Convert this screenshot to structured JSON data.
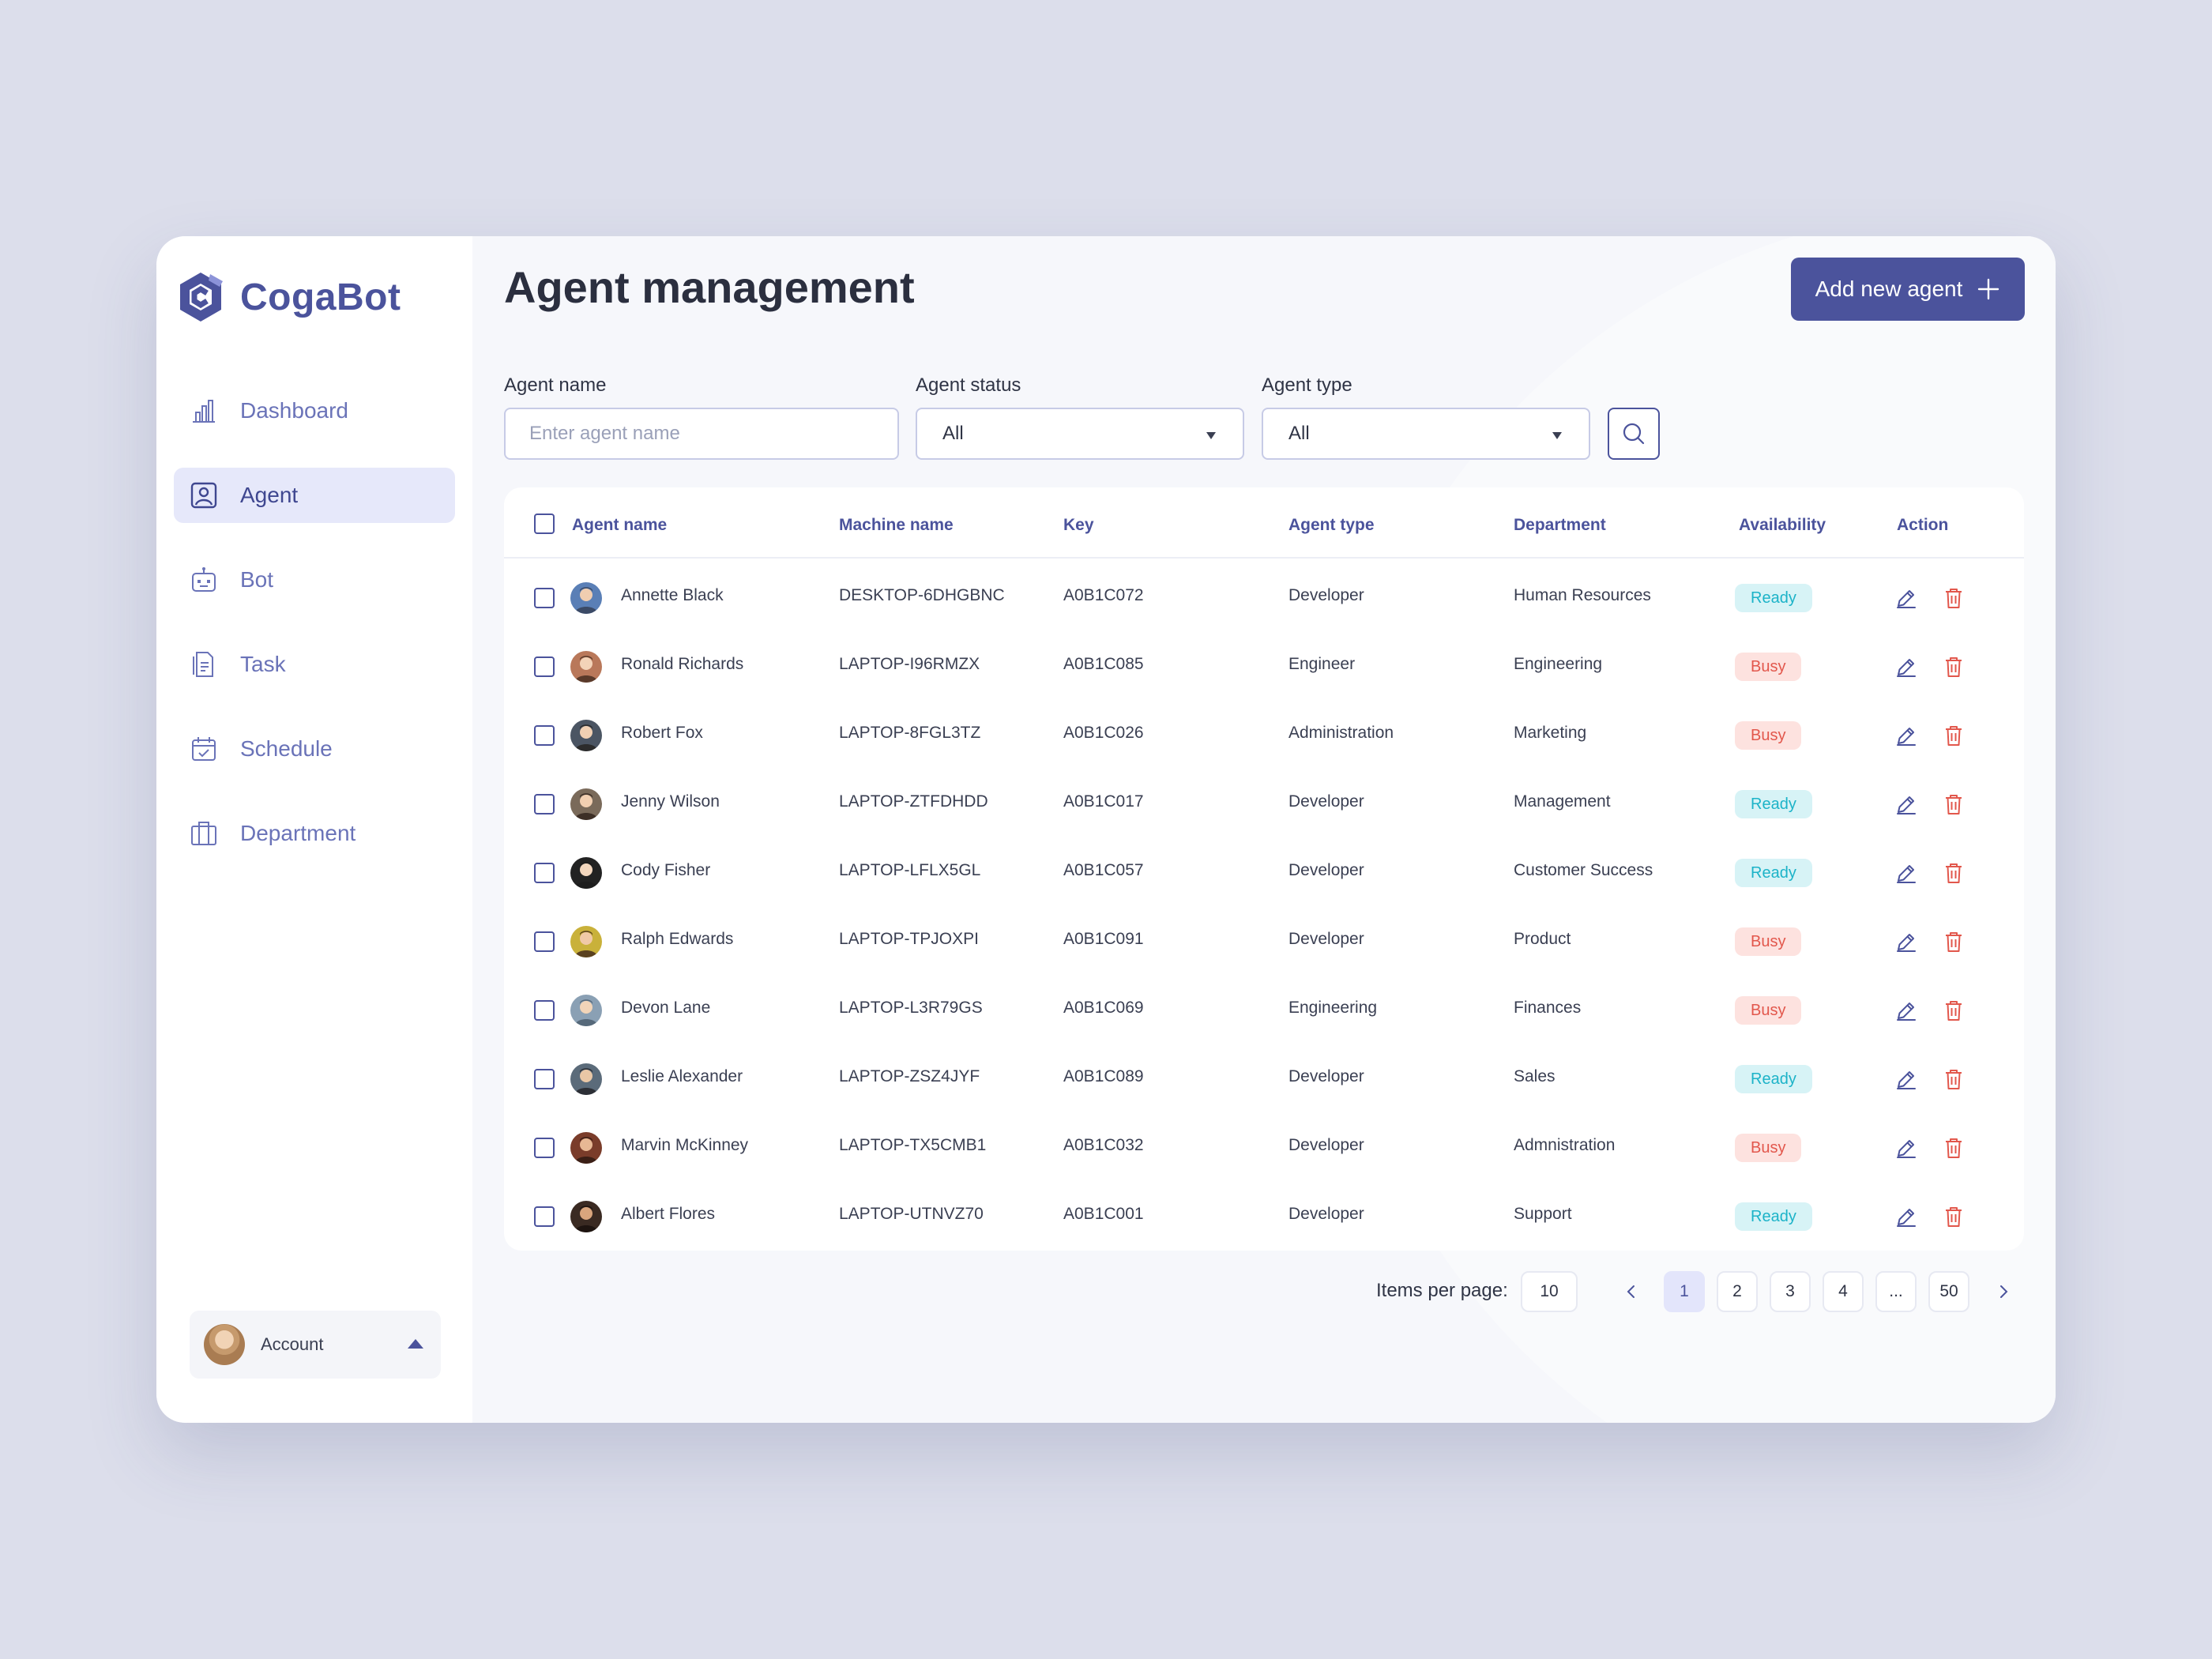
{
  "app": {
    "brand": "CogaBot",
    "accent": "#4b539c",
    "title": "Agent management",
    "add_button_label": "Add new agent"
  },
  "sidebar": {
    "items": [
      {
        "label": "Dashboard",
        "icon": "bar-chart-icon",
        "active": false
      },
      {
        "label": "Agent",
        "icon": "user-square-icon",
        "active": true
      },
      {
        "label": "Bot",
        "icon": "robot-icon",
        "active": false
      },
      {
        "label": "Task",
        "icon": "document-icon",
        "active": false
      },
      {
        "label": "Schedule",
        "icon": "calendar-icon",
        "active": false
      },
      {
        "label": "Department",
        "icon": "building-icon",
        "active": false
      }
    ],
    "account_label": "Account"
  },
  "filters": {
    "agent_name": {
      "label": "Agent name",
      "placeholder": "Enter agent name",
      "value": ""
    },
    "agent_status": {
      "label": "Agent status",
      "value": "All"
    },
    "agent_type": {
      "label": "Agent type",
      "value": "All"
    }
  },
  "table": {
    "columns": [
      "Agent name",
      "Machine name",
      "Key",
      "Agent type",
      "Department",
      "Availability",
      "Action"
    ],
    "rows": [
      {
        "name": "Annette Black",
        "machine": "DESKTOP-6DHGBNC",
        "key": "A0B1C072",
        "type": "Developer",
        "department": "Human Resources",
        "availability": "Ready"
      },
      {
        "name": "Ronald Richards",
        "machine": "LAPTOP-I96RMZX",
        "key": "A0B1C085",
        "type": "Engineer",
        "department": "Engineering",
        "availability": "Busy"
      },
      {
        "name": "Robert Fox",
        "machine": "LAPTOP-8FGL3TZ",
        "key": "A0B1C026",
        "type": "Administration",
        "department": "Marketing",
        "availability": "Busy"
      },
      {
        "name": "Jenny Wilson",
        "machine": "LAPTOP-ZTFDHDD",
        "key": "A0B1C017",
        "type": "Developer",
        "department": "Management",
        "availability": "Ready"
      },
      {
        "name": "Cody Fisher",
        "machine": "LAPTOP-LFLX5GL",
        "key": "A0B1C057",
        "type": "Developer",
        "department": "Customer Success",
        "availability": "Ready"
      },
      {
        "name": "Ralph Edwards",
        "machine": "LAPTOP-TPJOXPI",
        "key": "A0B1C091",
        "type": "Developer",
        "department": "Product",
        "availability": "Busy"
      },
      {
        "name": "Devon Lane",
        "machine": "LAPTOP-L3R79GS",
        "key": "A0B1C069",
        "type": "Engineering",
        "department": "Finances",
        "availability": "Busy"
      },
      {
        "name": "Leslie Alexander",
        "machine": "LAPTOP-ZSZ4JYF",
        "key": "A0B1C089",
        "type": "Developer",
        "department": "Sales",
        "availability": "Ready"
      },
      {
        "name": "Marvin McKinney",
        "machine": "LAPTOP-TX5CMB1",
        "key": "A0B1C032",
        "type": "Developer",
        "department": "Admnistration",
        "availability": "Busy"
      },
      {
        "name": "Albert Flores",
        "machine": "LAPTOP-UTNVZ70",
        "key": "A0B1C001",
        "type": "Developer",
        "department": "Support",
        "availability": "Ready"
      }
    ]
  },
  "pagination": {
    "items_per_page_label": "Items per page:",
    "items_per_page": "10",
    "pages": [
      "1",
      "2",
      "3",
      "4",
      "...",
      "50"
    ],
    "current": "1"
  },
  "colors": {
    "ready_bg": "#d7f3f6",
    "ready_text": "#1cb3c8",
    "busy_bg": "#fde2df",
    "busy_text": "#e2574c",
    "delete": "#e2574c"
  }
}
